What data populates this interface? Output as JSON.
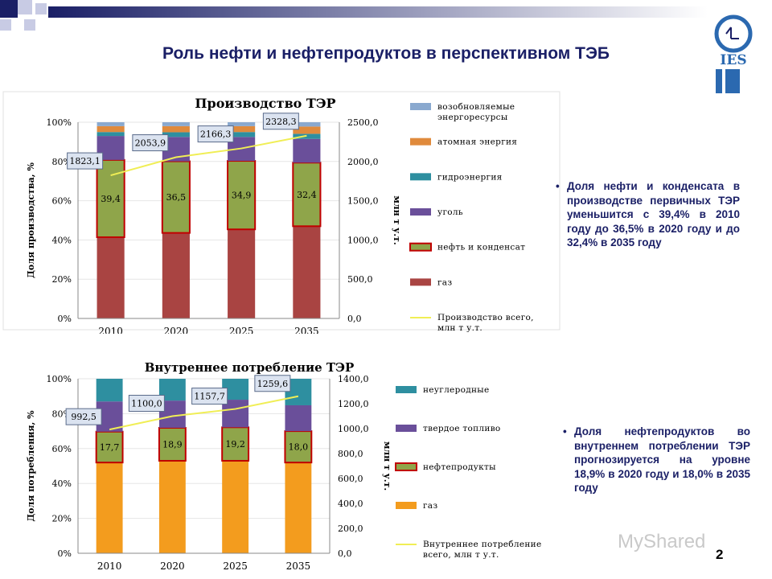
{
  "slide": {
    "title": "Роль нефти и нефтепродуктов в перспективном ТЭБ",
    "logo_text": "IES",
    "page_number": "2",
    "watermark": "MyShared",
    "accent_color": "#1a1f66"
  },
  "notes": {
    "production": "Доля нефти и конденсата в производстве первичных ТЭР уменьшится с 39,4% в 2010 году до 36,5% в 2020 году и до 32,4% в 2035 году",
    "consumption": "Доля нефтепродуктов во внутреннем потреблении ТЭР прогнозируется на уровне 18,9% в 2020 году и 18,0% в 2035 году"
  },
  "chart_data": [
    {
      "type": "bar",
      "title": "Производство ТЭР",
      "ylabel": "Доля производства, %",
      "y2label": "млн т у.т.",
      "ylim": [
        0,
        100
      ],
      "y2lim": [
        0,
        2500
      ],
      "categories": [
        "2010",
        "2020",
        "2025",
        "2035"
      ],
      "yticks": [
        "0%",
        "20%",
        "40%",
        "60%",
        "80%",
        "100%"
      ],
      "y2ticks": [
        "0,0",
        "500,0",
        "1000,0",
        "1500,0",
        "2000,0",
        "2500,0"
      ],
      "series": [
        {
          "name": "газ",
          "color": "#a94442",
          "values": [
            41.4,
            43.6,
            45.4,
            47.0
          ]
        },
        {
          "name": "нефть и конденсат",
          "color": "#8fa54a",
          "values": [
            39.4,
            36.5,
            34.9,
            32.4
          ],
          "labels": [
            "39,4",
            "36,5",
            "34,9",
            "32,4"
          ]
        },
        {
          "name": "уголь",
          "color": "#6a4f9a",
          "values": [
            12.2,
            12.4,
            12.2,
            12.1
          ]
        },
        {
          "name": "гидроэнергия",
          "color": "#2e8fa0",
          "values": [
            2.0,
            2.4,
            2.5,
            2.6
          ]
        },
        {
          "name": "атомная энергия",
          "color": "#e08a3c",
          "values": [
            3.0,
            3.1,
            3.0,
            3.7
          ]
        },
        {
          "name": "возобновляемые энергоресурсы",
          "color": "#8aa9cf",
          "values": [
            2.0,
            2.0,
            2.0,
            2.2
          ]
        }
      ],
      "line": {
        "name": "Производство всего, млн т у.т.",
        "color": "#f0ee55",
        "values": [
          1823.1,
          2053.9,
          2166.3,
          2328.3
        ],
        "labels": [
          "1823,1",
          "2053,9",
          "2166,3",
          "2328,3"
        ]
      },
      "legend_order": [
        "возобновляемые энергоресурсы",
        "атомная энергия",
        "гидроэнергия",
        "уголь",
        "нефть и конденсат",
        "газ",
        "Производство всего, млн т у.т."
      ],
      "legend_position": "right"
    },
    {
      "type": "bar",
      "title": "Внутреннее потребление ТЭР",
      "ylabel": "Доля потребления, %",
      "y2label": "млн т у.т.",
      "ylim": [
        0,
        100
      ],
      "y2lim": [
        0,
        1400
      ],
      "categories": [
        "2010",
        "2020",
        "2025",
        "2035"
      ],
      "yticks": [
        "0%",
        "20%",
        "40%",
        "60%",
        "80%",
        "100%"
      ],
      "y2ticks": [
        "0,0",
        "200,0",
        "400,0",
        "600,0",
        "800,0",
        "1000,0",
        "1200,0",
        "1400,0"
      ],
      "series": [
        {
          "name": "газ",
          "color": "#f39c1e",
          "values": [
            52.0,
            53.0,
            53.0,
            52.0
          ]
        },
        {
          "name": "нефтепродукты",
          "color": "#8fa54a",
          "values": [
            17.7,
            18.9,
            19.2,
            18.0
          ],
          "labels": [
            "17,7",
            "18,9",
            "19,2",
            "18,0"
          ]
        },
        {
          "name": "твердое топливо",
          "color": "#6a4f9a",
          "values": [
            17.3,
            15.6,
            15.8,
            14.8
          ]
        },
        {
          "name": "неуглеродные",
          "color": "#2e8fa0",
          "values": [
            13.0,
            12.5,
            12.0,
            15.2
          ]
        }
      ],
      "line": {
        "name": "Внутреннее потребление всего, млн т у.т.",
        "color": "#f0ee55",
        "values": [
          992.5,
          1100.0,
          1157.7,
          1259.6
        ],
        "labels": [
          "992,5",
          "1100,0",
          "1157,7",
          "1259,6"
        ]
      },
      "legend_order": [
        "неуглеродные",
        "твердое топливо",
        "нефтепродукты",
        "газ",
        "Внутреннее потребление всего, млн т у.т."
      ],
      "legend_position": "right"
    }
  ]
}
